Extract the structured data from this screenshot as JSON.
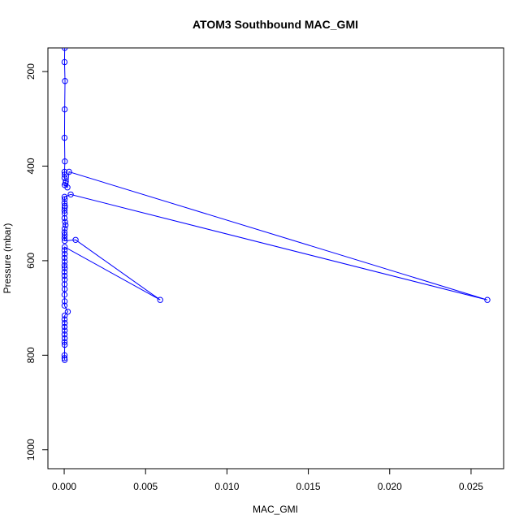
{
  "chart_data": {
    "type": "line",
    "title": "ATOM3 Southbound MAC_GMI",
    "xlabel": "MAC_GMI",
    "ylabel": "Pressure (mbar)",
    "xlim": [
      -0.001,
      0.027
    ],
    "ylim": [
      1040,
      150
    ],
    "y_inverted": true,
    "xticks": [
      0.0,
      0.005,
      0.01,
      0.015,
      0.02,
      0.025
    ],
    "xtick_labels": [
      "0.000",
      "0.005",
      "0.010",
      "0.015",
      "0.020",
      "0.025"
    ],
    "yticks": [
      200,
      400,
      600,
      800,
      1000
    ],
    "ytick_labels": [
      "200",
      "400",
      "600",
      "800",
      "1000"
    ],
    "grid": false,
    "color": "#0000ff",
    "marker": "open-circle",
    "series": [
      {
        "points": [
          [
            3e-05,
            150
          ],
          [
            2e-05,
            180
          ],
          [
            5e-05,
            220
          ],
          [
            3e-05,
            280
          ],
          [
            2e-05,
            340
          ],
          [
            4e-05,
            390
          ],
          [
            2e-05,
            412
          ],
          [
            3e-05,
            418
          ],
          [
            2e-05,
            425
          ],
          [
            0.0001,
            432
          ],
          [
            8e-05,
            436
          ],
          [
            3e-05,
            440
          ],
          [
            0.0002,
            445
          ],
          [
            0.0003,
            412
          ],
          [
            0.026,
            683
          ],
          [
            0.0004,
            460
          ],
          [
            2e-05,
            465
          ],
          [
            3e-05,
            470
          ],
          [
            2e-05,
            478
          ],
          [
            4e-05,
            484
          ],
          [
            3e-05,
            488
          ],
          [
            2e-05,
            494
          ],
          [
            3e-05,
            500
          ],
          [
            2e-05,
            510
          ],
          [
            5e-05,
            518
          ],
          [
            8e-05,
            525
          ],
          [
            3e-05,
            532
          ],
          [
            2e-05,
            540
          ],
          [
            3e-05,
            546
          ],
          [
            2e-05,
            552
          ],
          [
            3e-05,
            558
          ],
          [
            0.0007,
            556
          ],
          [
            0.0059,
            683
          ],
          [
            3e-05,
            571
          ],
          [
            2e-05,
            578
          ],
          [
            3e-05,
            586
          ],
          [
            2e-05,
            594
          ],
          [
            3e-05,
            602
          ],
          [
            2e-05,
            610
          ],
          [
            3e-05,
            616
          ],
          [
            2e-05,
            624
          ],
          [
            2e-05,
            632
          ],
          [
            3e-05,
            640
          ],
          [
            2e-05,
            650
          ],
          [
            3e-05,
            660
          ],
          [
            2e-05,
            672
          ],
          [
            3e-05,
            686
          ],
          [
            2e-05,
            695
          ],
          [
            0.00022,
            708
          ],
          [
            3e-05,
            716
          ],
          [
            2e-05,
            724
          ],
          [
            3e-05,
            732
          ],
          [
            2e-05,
            740
          ],
          [
            3e-05,
            748
          ],
          [
            2e-05,
            756
          ],
          [
            3e-05,
            764
          ],
          [
            2e-05,
            772
          ],
          [
            3e-05,
            778
          ],
          [
            2e-05,
            800
          ],
          [
            2e-05,
            806
          ],
          [
            3e-05,
            810
          ]
        ]
      }
    ]
  }
}
